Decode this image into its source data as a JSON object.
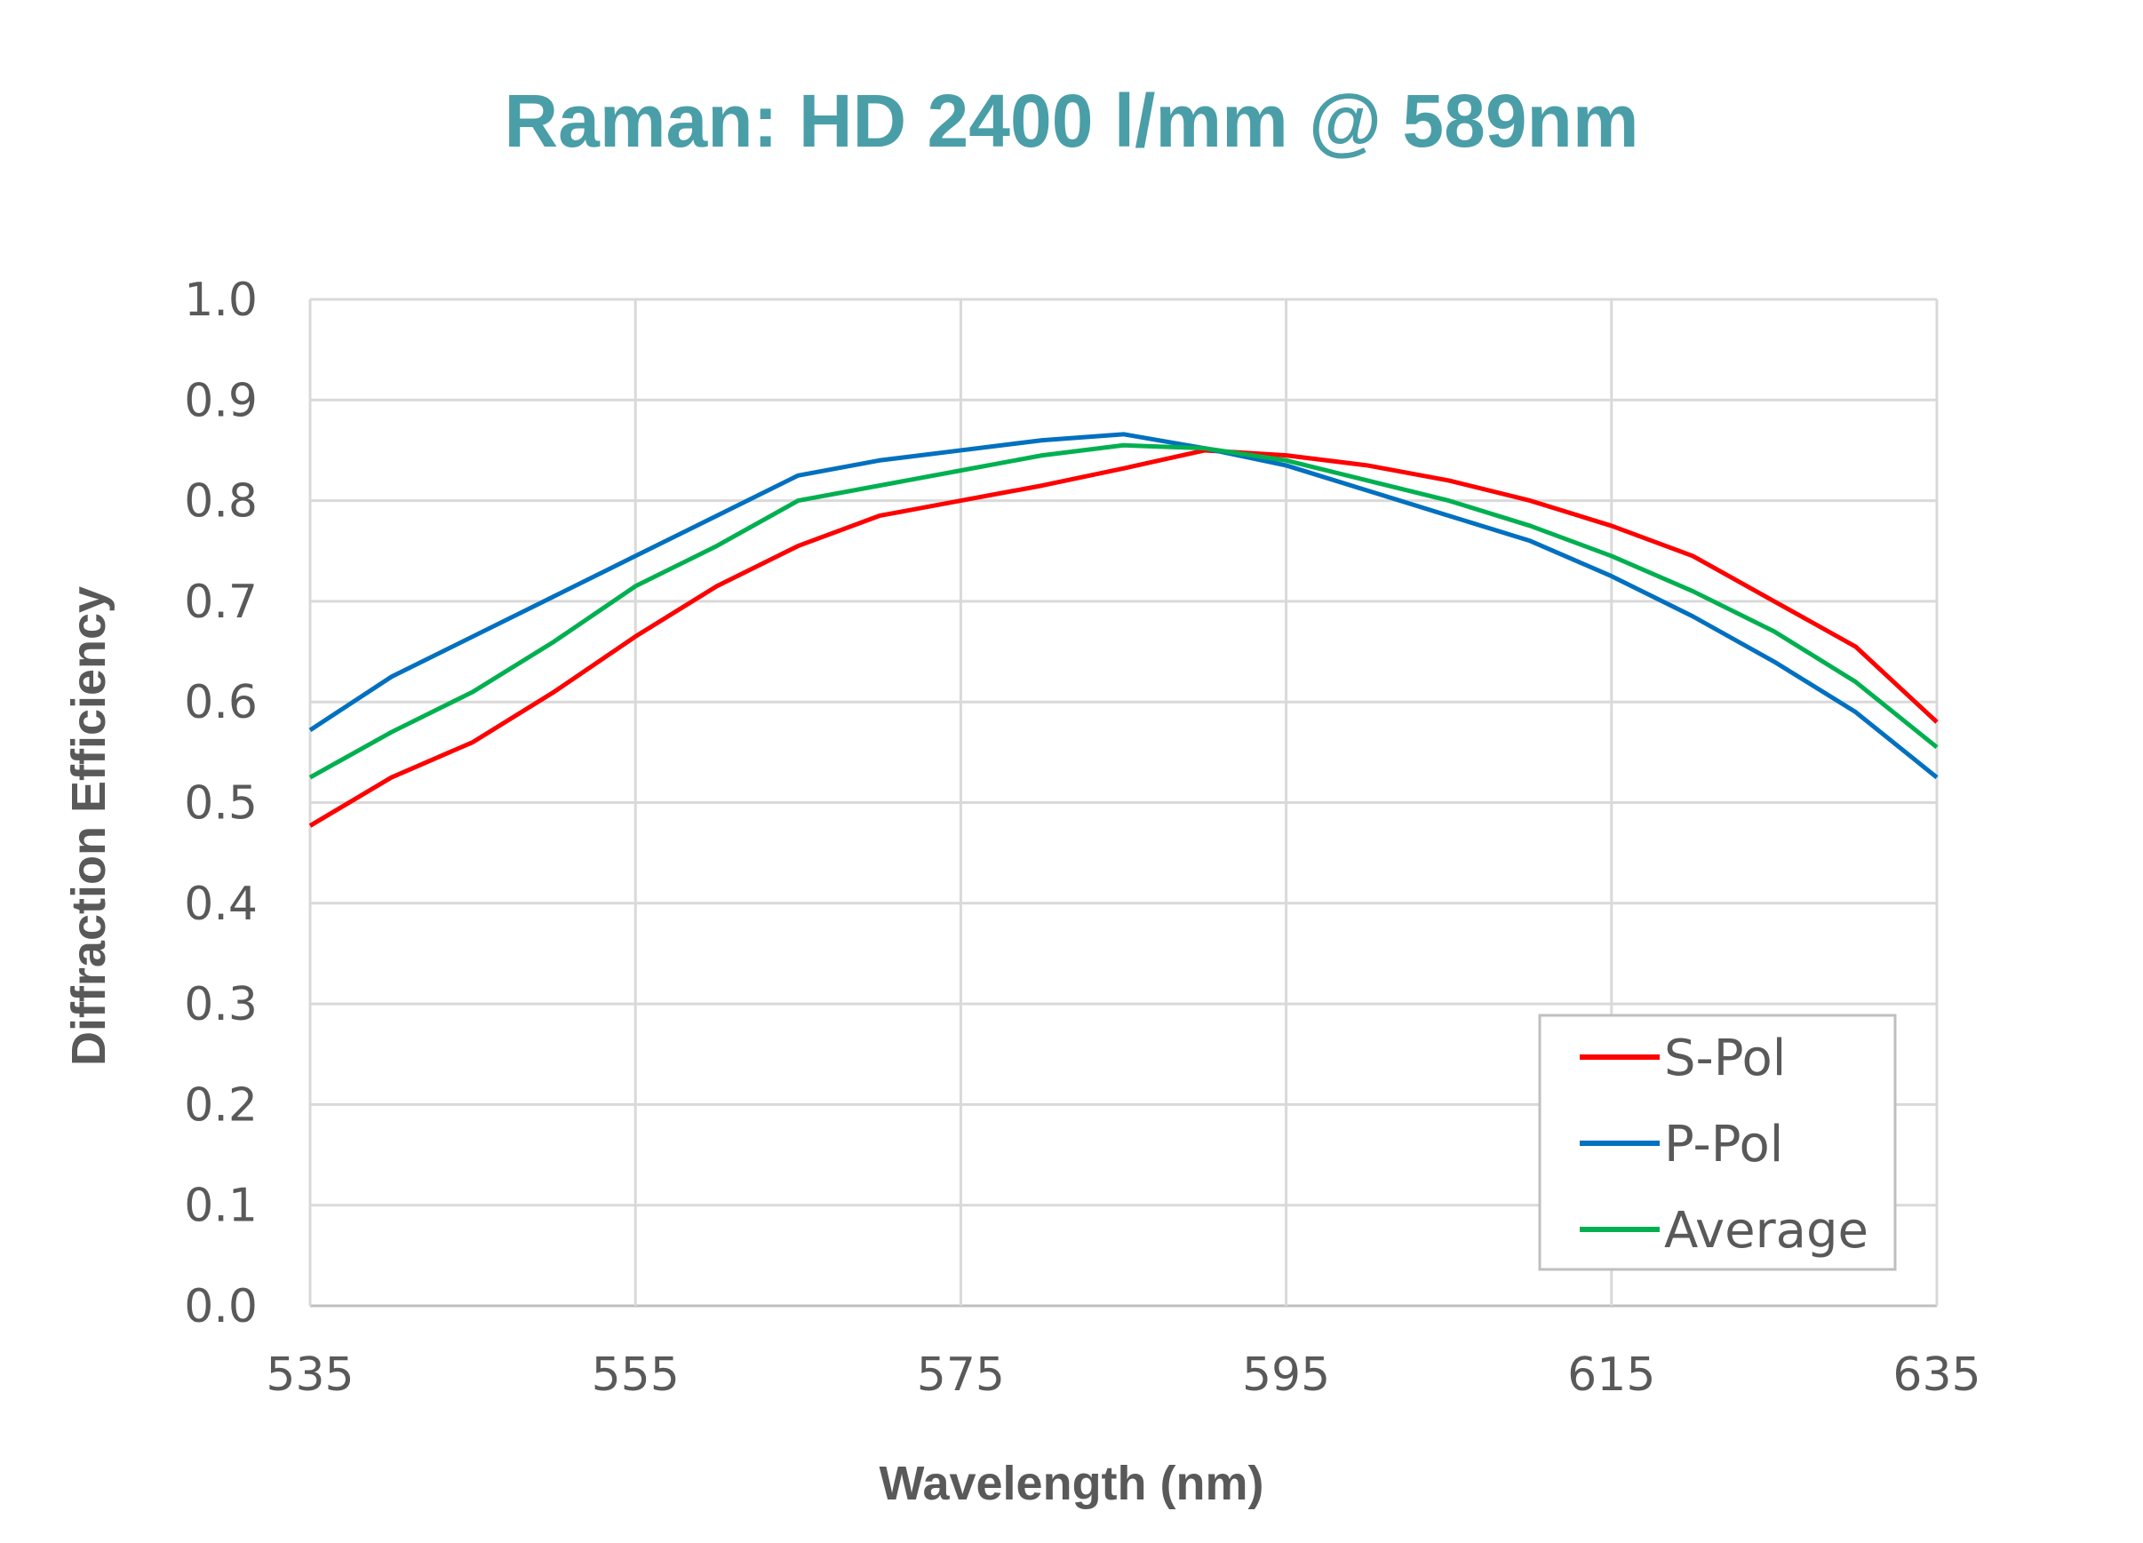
{
  "chart_data": {
    "type": "line",
    "title": "Raman: HD 2400 l/mm @ 589nm",
    "xlabel": "Wavelength (nm)",
    "ylabel": "Diffraction Efficiency",
    "xlim": [
      535,
      635
    ],
    "ylim": [
      0,
      1.0
    ],
    "xticks": [
      "535",
      "555",
      "575",
      "595",
      "615",
      "635"
    ],
    "yticks": [
      "0.0",
      "0.1",
      "0.2",
      "0.3",
      "0.4",
      "0.5",
      "0.6",
      "0.7",
      "0.8",
      "0.9",
      "1.0"
    ],
    "grid": true,
    "legend_position": "bottom-right",
    "x": [
      535,
      540,
      545,
      550,
      555,
      560,
      565,
      570,
      575,
      580,
      585,
      590,
      595,
      600,
      605,
      610,
      615,
      620,
      625,
      630,
      635
    ],
    "series": [
      {
        "name": "S-Pol",
        "color": "#ff0000",
        "values": [
          0.477,
          0.525,
          0.56,
          0.61,
          0.665,
          0.715,
          0.755,
          0.785,
          0.8,
          0.815,
          0.832,
          0.85,
          0.845,
          0.835,
          0.82,
          0.8,
          0.775,
          0.745,
          0.7,
          0.655,
          0.58
        ]
      },
      {
        "name": "P-Pol",
        "color": "#0070c0",
        "values": [
          0.572,
          0.625,
          0.665,
          0.705,
          0.745,
          0.785,
          0.825,
          0.84,
          0.85,
          0.86,
          0.866,
          0.852,
          0.835,
          0.81,
          0.785,
          0.76,
          0.725,
          0.685,
          0.64,
          0.59,
          0.525
        ]
      },
      {
        "name": "Average",
        "color": "#00b050",
        "values": [
          0.525,
          0.57,
          0.61,
          0.66,
          0.715,
          0.755,
          0.8,
          0.815,
          0.83,
          0.845,
          0.855,
          0.852,
          0.84,
          0.82,
          0.8,
          0.775,
          0.745,
          0.71,
          0.67,
          0.62,
          0.555
        ]
      }
    ]
  }
}
